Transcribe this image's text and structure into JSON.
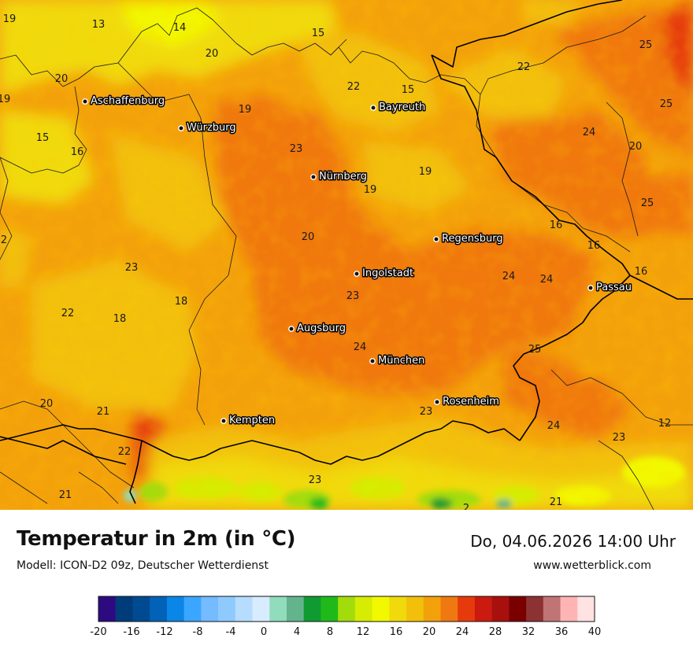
{
  "title": "Temperatur in 2m (in °C)",
  "model": "Modell: ICON-D2 09z, Deutscher Wetterdienst",
  "datetime": "Do, 04.06.2026 14:00 Uhr",
  "website": "www.wetterblick.com",
  "cities": [
    {
      "name": "Aschaffenburg"
    },
    {
      "name": "Würzburg"
    },
    {
      "name": "Bayreuth"
    },
    {
      "name": "Nürnberg"
    },
    {
      "name": "Regensburg"
    },
    {
      "name": "Ingolstadt"
    },
    {
      "name": "Passau"
    },
    {
      "name": "Augsburg"
    },
    {
      "name": "München"
    },
    {
      "name": "Rosenheim"
    },
    {
      "name": "Kempten"
    }
  ],
  "temperature_labels": [
    "19",
    "13",
    "14",
    "15",
    "20",
    "20",
    "19",
    "15",
    "16",
    "22",
    "15",
    "19",
    "23",
    "19",
    "19",
    "22",
    "25",
    "25",
    "24",
    "20",
    "25",
    "16",
    "16",
    "16",
    "20",
    "2",
    "23",
    "18",
    "22",
    "18",
    "24",
    "24",
    "23",
    "24",
    "25",
    "20",
    "21",
    "23",
    "24",
    "23",
    "12",
    "22",
    "23",
    "21",
    "21",
    "2"
  ],
  "color_scale": {
    "ticks": [
      "-20",
      "-16",
      "-12",
      "-8",
      "-4",
      "0",
      "4",
      "8",
      "12",
      "16",
      "20",
      "24",
      "28",
      "32",
      "36",
      "40"
    ],
    "colors": [
      "#2e0a80",
      "#003c7a",
      "#004a91",
      "#0262b8",
      "#0a86e6",
      "#3aa6ff",
      "#74bbff",
      "#8fcaff",
      "#b6dcff",
      "#d8ecff",
      "#90dcbc",
      "#63b48c",
      "#0f9b32",
      "#1fba1a",
      "#a2dc0b",
      "#d6ec02",
      "#f2f800",
      "#f0da0b",
      "#f2c00a",
      "#f3a10b",
      "#f07810",
      "#e63a0c",
      "#cb1a10",
      "#a8100e",
      "#7a0000",
      "#8c3232",
      "#c07474",
      "#ffb4b4",
      "#ffe2e2"
    ]
  }
}
